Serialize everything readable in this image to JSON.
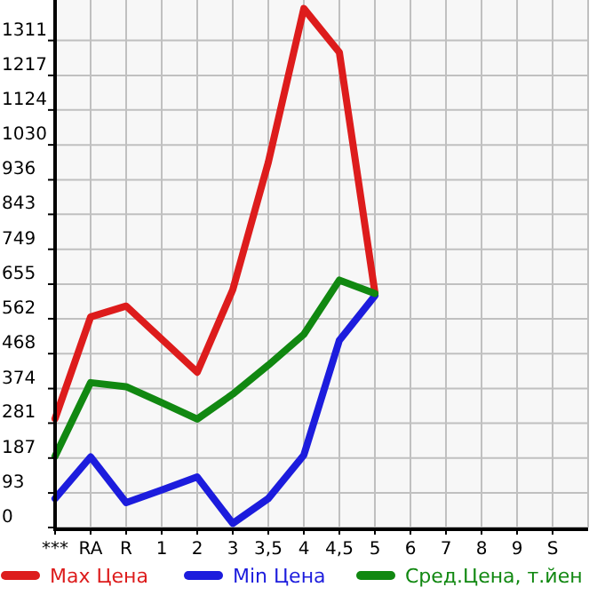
{
  "chart_data": {
    "type": "line",
    "categories": [
      "***",
      "RA",
      "R",
      "1",
      "2",
      "3",
      "3,5",
      "4",
      "4,5",
      "5",
      "6",
      "7",
      "8",
      "9",
      "S"
    ],
    "ylim": [
      0,
      1420
    ],
    "yticks": [
      0,
      93,
      187,
      281,
      374,
      468,
      562,
      655,
      749,
      843,
      936,
      1030,
      1124,
      1217,
      1311
    ],
    "grid": true,
    "legend": "bottom",
    "marker": "none",
    "series": [
      {
        "name": "Max Цена",
        "color": "#dd1c1c",
        "values": [
          293,
          567,
          596,
          507,
          418,
          640,
          983,
          1397,
          1279,
          632,
          null,
          null,
          null,
          null,
          null
        ]
      },
      {
        "name": "Min Цена",
        "color": "#1c1cdd",
        "values": [
          78,
          190,
          67,
          101,
          136,
          11,
          78,
          195,
          504,
          624,
          null,
          null,
          null,
          null,
          null
        ]
      },
      {
        "name": "Сред.Цена, т.йен",
        "color": "#118811",
        "values": [
          192,
          390,
          379,
          336,
          292,
          359,
          437,
          520,
          666,
          630,
          null,
          null,
          null,
          null,
          null
        ]
      }
    ]
  }
}
